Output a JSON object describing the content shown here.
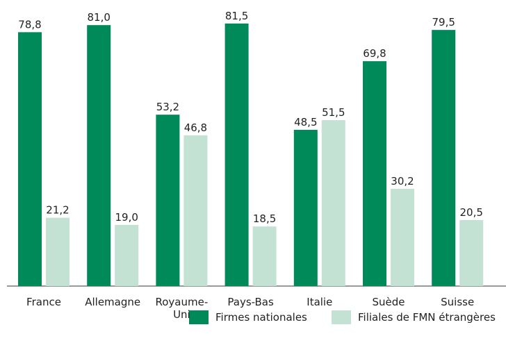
{
  "chart_data": {
    "type": "bar",
    "categories": [
      "France",
      "Allemagne",
      "Royaume-Uni",
      "Pays-Bas",
      "Italie",
      "Suède",
      "Suisse"
    ],
    "series": [
      {
        "name": "Firmes nationales",
        "color": "#008a5a",
        "values": [
          78.8,
          81.0,
          53.2,
          81.5,
          48.5,
          69.8,
          79.5
        ],
        "value_labels": [
          "78,8",
          "81,0",
          "53,2",
          "81,5",
          "48,5",
          "69,8",
          "79,5"
        ]
      },
      {
        "name": "Filiales de FMN étrangères",
        "color": "#c3e2d4",
        "values": [
          21.2,
          19.0,
          46.8,
          18.5,
          51.5,
          30.2,
          20.5
        ],
        "value_labels": [
          "21,2",
          "19,0",
          "46,8",
          "18,5",
          "51,5",
          "30,2",
          "20,5"
        ]
      }
    ]
  }
}
